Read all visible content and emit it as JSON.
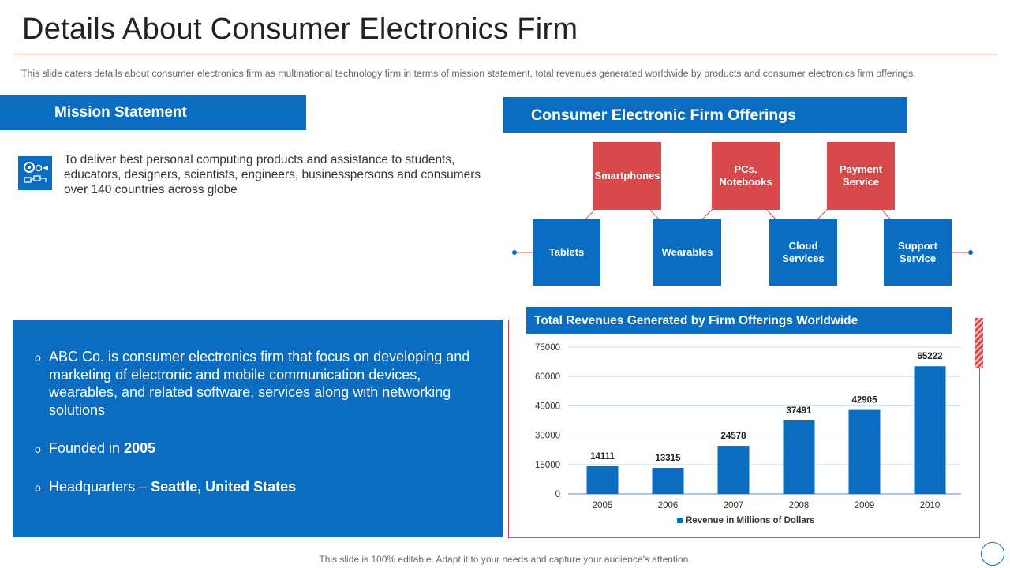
{
  "title": "Details About Consumer Electronics Firm",
  "subtitle": "This slide caters details about consumer electronics firm as multinational technology firm in terms of mission statement, total revenues  generated worldwide  by products and consumer electronics firm offerings.",
  "mission": {
    "header": "Mission Statement",
    "icon": "gears-chart-icon",
    "text": "To deliver best personal computing products and assistance to students, educators, designers, scientists, engineers, businesspersons and consumers over 140 countries across globe"
  },
  "info": {
    "item1": "ABC Co. is consumer electronics firm that focus on developing and marketing of electronic and mobile communication devices, wearables, and related software, services along with networking solutions",
    "item2_prefix": "Founded in ",
    "item2_bold": "2005",
    "item3_prefix": "Headquarters – ",
    "item3_bold": "Seattle, United States",
    "bullet": "o"
  },
  "offerings": {
    "header": "Consumer Electronic Firm Offerings",
    "top": [
      "Smartphones",
      "PCs,\nNotebooks",
      "Payment\nService"
    ],
    "bottom": [
      "Tablets",
      "Wearables",
      "Cloud\nServices",
      "Support\nService"
    ],
    "colors": {
      "top": "#d9484b",
      "bottom": "#0a6dc2"
    }
  },
  "chart_data": {
    "type": "bar",
    "title": "Total Revenues Generated by Firm Offerings Worldwide",
    "categories": [
      "2005",
      "2006",
      "2007",
      "2008",
      "2009",
      "2010"
    ],
    "series": [
      {
        "name": "Revenue in Millions of Dollars",
        "values": [
          14111,
          13315,
          24578,
          37491,
          42905,
          65222
        ]
      }
    ],
    "yticks": [
      0,
      15000,
      30000,
      45000,
      60000,
      75000
    ],
    "ylim": [
      0,
      75000
    ],
    "grid": true,
    "legend": "bottom",
    "color": "#0a6dc2"
  },
  "footer": "This slide is 100% editable. Adapt it to your needs and capture your audience's attention."
}
